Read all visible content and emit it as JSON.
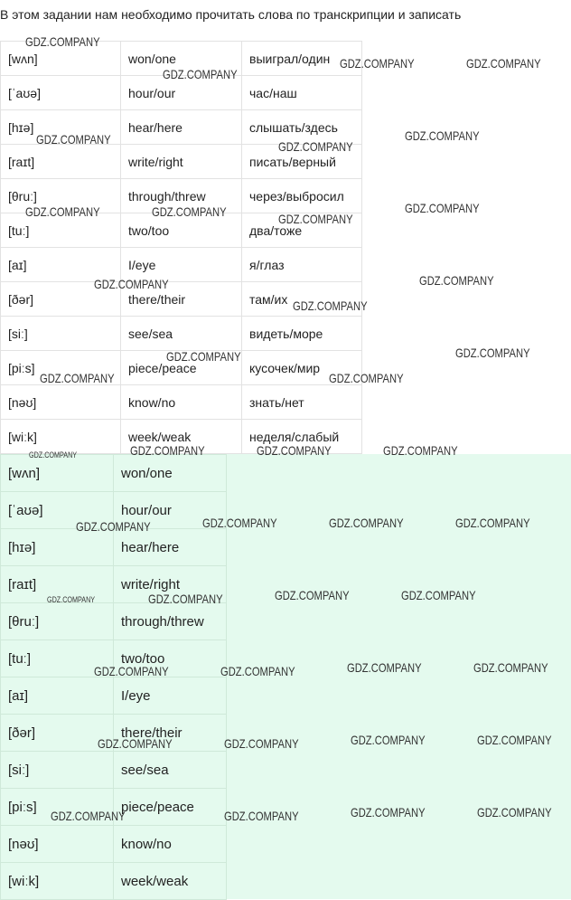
{
  "heading": "В этом задании нам необходимо прочитать слова по транскрипции и записать",
  "table1": {
    "rows": [
      [
        "[wʌn]",
        "won/one",
        "выиграл/один"
      ],
      [
        "[ˈaʊə]",
        "hour/our",
        "час/наш"
      ],
      [
        "[hɪə]",
        "hear/here",
        "слышать/здесь"
      ],
      [
        "[raɪt]",
        "write/right",
        "писать/верный"
      ],
      [
        "[θruː]",
        "through/threw",
        "через/выбросил"
      ],
      [
        "[tuː]",
        "two/too",
        "два/тоже"
      ],
      [
        "[aɪ]",
        "I/eye",
        "я/глаз"
      ],
      [
        "[ðər]",
        "there/their",
        "там/их"
      ],
      [
        "[siː]",
        "see/sea",
        "видеть/море"
      ],
      [
        "[piːs]",
        "piece/peace",
        "кусочек/мир"
      ],
      [
        "[nəʊ]",
        "know/no",
        "знать/нет"
      ],
      [
        "[wiːk]",
        "week/weak",
        "неделя/слабый"
      ]
    ]
  },
  "table2": {
    "rows": [
      [
        "[wʌn]",
        "won/one"
      ],
      [
        "[ˈaʊə]",
        "hour/our"
      ],
      [
        "[hɪə]",
        "hear/here"
      ],
      [
        "[raɪt]",
        "write/right"
      ],
      [
        "[θruː]",
        "through/threw"
      ],
      [
        "[tuː]",
        "two/too"
      ],
      [
        "[aɪ]",
        "I/eye"
      ],
      [
        "[ðər]",
        "there/their"
      ],
      [
        "[siː]",
        "see/sea"
      ],
      [
        "[piːs]",
        "piece/peace"
      ],
      [
        "[nəʊ]",
        "know/no"
      ],
      [
        "[wiːk]",
        "week/weak"
      ]
    ]
  },
  "watermark": "GDZ.COMPANY"
}
